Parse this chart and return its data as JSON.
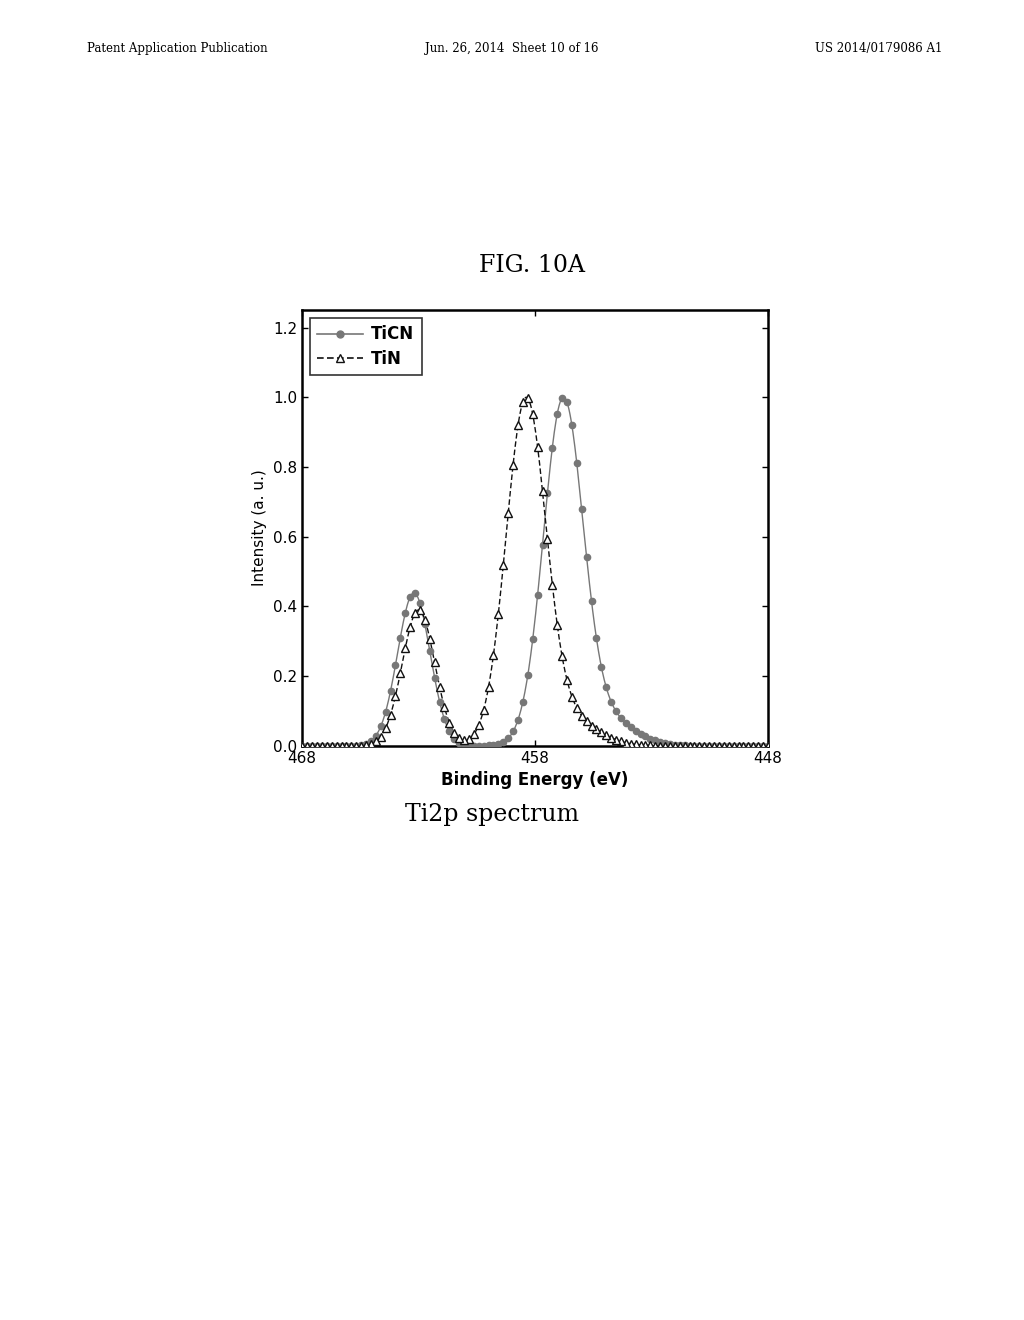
{
  "title": "FIG. 10A",
  "subtitle": "Ti2p spectrum",
  "xlabel": "Binding Energy (eV)",
  "ylabel": "Intensity (a. u.)",
  "xlim": [
    468,
    448
  ],
  "ylim": [
    0.0,
    1.25
  ],
  "yticks": [
    0.0,
    0.2,
    0.4,
    0.6,
    0.8,
    1.0,
    1.2
  ],
  "xticks": [
    468,
    458,
    448
  ],
  "header_left": "Patent Application Publication",
  "header_mid": "Jun. 26, 2014  Sheet 10 of 16",
  "header_right": "US 2014/0179086 A1",
  "ticn_color": "#777777",
  "tin_color": "#111111",
  "background_color": "#ffffff"
}
